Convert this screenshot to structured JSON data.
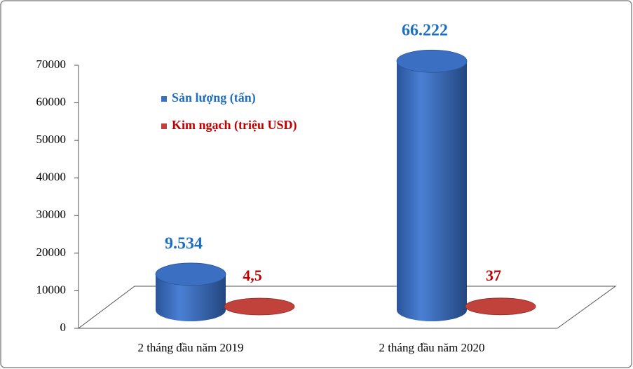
{
  "chart_data": {
    "type": "bar",
    "categories": [
      "2 tháng đầu năm 2019",
      "2 tháng đầu năm 2020"
    ],
    "series": [
      {
        "name": "Sản lượng (tấn)",
        "color": "#3b6fc2",
        "values": [
          9534,
          66222
        ],
        "value_labels": [
          "9.534",
          "66.222"
        ]
      },
      {
        "name": "Kim ngạch (triệu USD)",
        "color": "#c0423b",
        "values": [
          4.5,
          37
        ],
        "value_labels": [
          "4,5",
          "37"
        ]
      }
    ],
    "ylim": [
      0,
      70000
    ],
    "yticks": [
      0,
      10000,
      20000,
      30000,
      40000,
      50000,
      60000,
      70000
    ],
    "legend": "upper-left"
  }
}
